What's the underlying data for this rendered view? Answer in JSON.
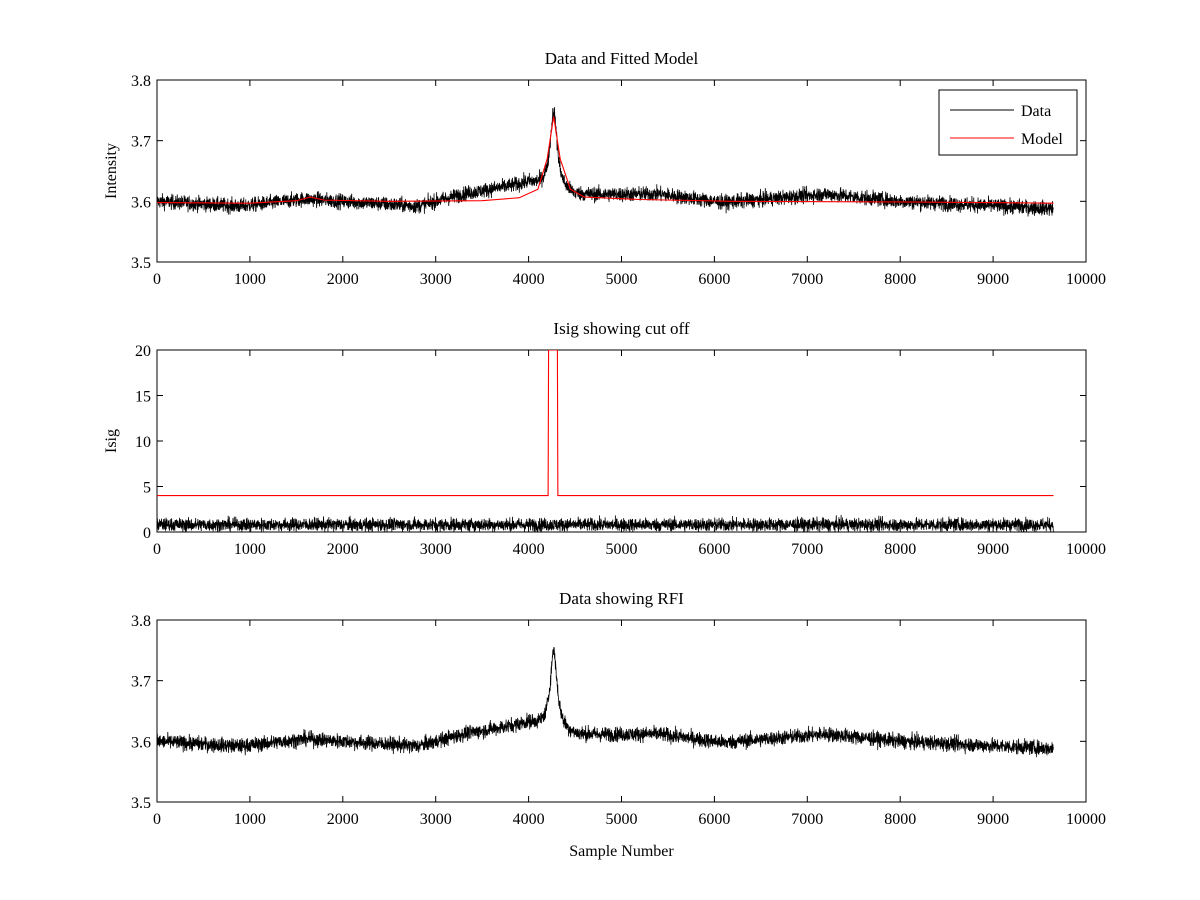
{
  "chart_data": [
    {
      "type": "line",
      "title": "Data and Fitted Model",
      "xlabel": "",
      "ylabel": "Intensity",
      "xlim": [
        0,
        10000
      ],
      "ylim": [
        3.5,
        3.8
      ],
      "xticks": [
        0,
        1000,
        2000,
        3000,
        4000,
        5000,
        6000,
        7000,
        8000,
        9000,
        10000
      ],
      "xtick_labels": [
        "0",
        "1000",
        "2000",
        "3000",
        "4000",
        "5000",
        "6000",
        "7000",
        "8000",
        "9000",
        "10000"
      ],
      "yticks": [
        3.5,
        3.6,
        3.7,
        3.8
      ],
      "ytick_labels": [
        "3.5",
        "3.6",
        "3.7",
        "3.8"
      ],
      "legend": {
        "placement": "top-right",
        "entries": [
          "Data",
          "Model"
        ]
      },
      "series": [
        {
          "name": "Data",
          "color": "#000000",
          "n_samples": 9650,
          "baseline": 3.6,
          "noise_amplitude": 0.012,
          "drift": [
            [
              0,
              0.0
            ],
            [
              900,
              -0.008
            ],
            [
              1600,
              0.004
            ],
            [
              2800,
              -0.008
            ],
            [
              3300,
              0.012
            ],
            [
              4000,
              0.03
            ],
            [
              4500,
              0.01
            ],
            [
              5400,
              0.012
            ],
            [
              6100,
              -0.002
            ],
            [
              7200,
              0.012
            ],
            [
              8000,
              0.0
            ],
            [
              9650,
              -0.012
            ]
          ],
          "peak": {
            "x": 4270,
            "amplitude": 0.13,
            "width": 45
          }
        },
        {
          "name": "Model",
          "color": "#ff0000",
          "points": [
            [
              0,
              3.598
            ],
            [
              1000,
              3.597
            ],
            [
              1500,
              3.601
            ],
            [
              1650,
              3.607
            ],
            [
              1800,
              3.602
            ],
            [
              2500,
              3.6
            ],
            [
              3500,
              3.601
            ],
            [
              3900,
              3.606
            ],
            [
              4100,
              3.62
            ],
            [
              4200,
              3.67
            ],
            [
              4270,
              3.74
            ],
            [
              4340,
              3.67
            ],
            [
              4450,
              3.62
            ],
            [
              4600,
              3.607
            ],
            [
              5200,
              3.603
            ],
            [
              6200,
              3.6
            ],
            [
              8000,
              3.599
            ],
            [
              9650,
              3.597
            ]
          ]
        }
      ]
    },
    {
      "type": "line",
      "title": "Isig showing cut off",
      "xlabel": "",
      "ylabel": "Isig",
      "xlim": [
        0,
        10000
      ],
      "ylim": [
        0,
        20
      ],
      "xticks": [
        0,
        1000,
        2000,
        3000,
        4000,
        5000,
        6000,
        7000,
        8000,
        9000,
        10000
      ],
      "xtick_labels": [
        "0",
        "1000",
        "2000",
        "3000",
        "4000",
        "5000",
        "6000",
        "7000",
        "8000",
        "9000",
        "10000"
      ],
      "yticks": [
        0,
        5,
        10,
        15,
        20
      ],
      "ytick_labels": [
        "0",
        "5",
        "10",
        "15",
        "20"
      ],
      "series": [
        {
          "name": "Isig",
          "color": "#000000",
          "n_samples": 9650,
          "baseline": 0.8,
          "noise_amplitude": 0.9,
          "max": 3.3
        },
        {
          "name": "Cut off",
          "color": "#ff0000",
          "points": [
            [
              0,
              4
            ],
            [
              4210,
              4
            ],
            [
              4215,
              20
            ],
            [
              4310,
              20
            ],
            [
              4315,
              4
            ],
            [
              9650,
              4
            ]
          ]
        }
      ]
    },
    {
      "type": "line",
      "title": "Data showing RFI",
      "xlabel": "Sample Number",
      "ylabel": "",
      "xlim": [
        0,
        10000
      ],
      "ylim": [
        3.5,
        3.8
      ],
      "xticks": [
        0,
        1000,
        2000,
        3000,
        4000,
        5000,
        6000,
        7000,
        8000,
        9000,
        10000
      ],
      "xtick_labels": [
        "0",
        "1000",
        "2000",
        "3000",
        "4000",
        "5000",
        "6000",
        "7000",
        "8000",
        "9000",
        "10000"
      ],
      "yticks": [
        3.5,
        3.6,
        3.7,
        3.8
      ],
      "ytick_labels": [
        "3.5",
        "3.6",
        "3.7",
        "3.8"
      ],
      "series": [
        {
          "name": "Data",
          "color": "#000000",
          "n_samples": 9650,
          "baseline": 3.6,
          "noise_amplitude": 0.012,
          "drift": [
            [
              0,
              0.0
            ],
            [
              900,
              -0.008
            ],
            [
              1600,
              0.004
            ],
            [
              2800,
              -0.008
            ],
            [
              3300,
              0.012
            ],
            [
              4000,
              0.03
            ],
            [
              4500,
              0.01
            ],
            [
              5400,
              0.012
            ],
            [
              6100,
              -0.002
            ],
            [
              7200,
              0.012
            ],
            [
              8000,
              0.0
            ],
            [
              9650,
              -0.012
            ]
          ],
          "peak": {
            "x": 4270,
            "amplitude": 0.13,
            "width": 45
          }
        }
      ]
    }
  ]
}
